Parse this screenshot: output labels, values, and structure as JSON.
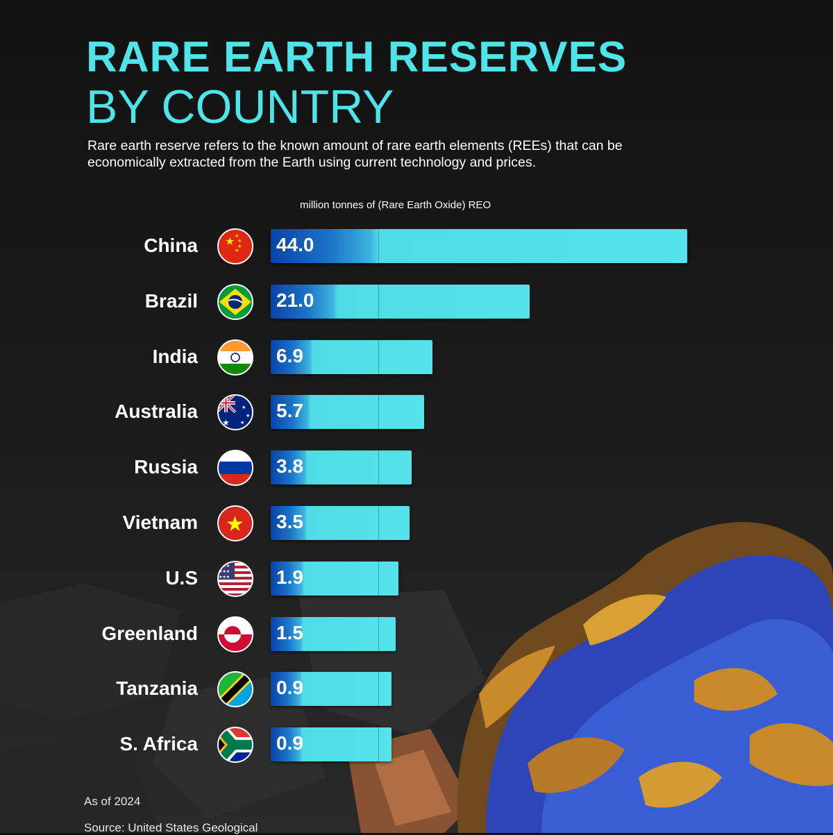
{
  "header": {
    "title_line1": "RARE EARTH RESERVES",
    "title_line2": "BY COUNTRY",
    "description": "Rare earth reserve refers to the known amount of rare earth elements (REEs) that can be economically extracted from the Earth using current technology and prices."
  },
  "footer": {
    "as_of": "As of 2024",
    "source": "Source: United States Geological"
  },
  "colors": {
    "accent": "#4fe3ea",
    "bar_start": "#0a43a6",
    "bar_end": "#55e2ea",
    "background": "#121212"
  },
  "chart_data": {
    "type": "bar",
    "orientation": "horizontal",
    "unit_label": "million tonnes of (Rare Earth Oxide) REO",
    "categories": [
      "China",
      "Brazil",
      "India",
      "Australia",
      "Russia",
      "Vietnam",
      "U.S",
      "Greenland",
      "Tanzania",
      "S. Africa"
    ],
    "values": [
      44.0,
      21.0,
      6.9,
      5.7,
      3.8,
      3.5,
      1.9,
      1.5,
      0.9,
      0.9
    ],
    "value_labels": [
      "44.0",
      "21.0",
      "6.9",
      "5.7",
      "3.8",
      "3.5",
      "1.9",
      "1.5",
      "0.9",
      "0.9"
    ],
    "flags": [
      "china-flag-icon",
      "brazil-flag-icon",
      "india-flag-icon",
      "australia-flag-icon",
      "russia-flag-icon",
      "vietnam-flag-icon",
      "usa-flag-icon",
      "greenland-flag-icon",
      "tanzania-flag-icon",
      "south-africa-flag-icon"
    ],
    "grid": false,
    "legend": "none"
  }
}
